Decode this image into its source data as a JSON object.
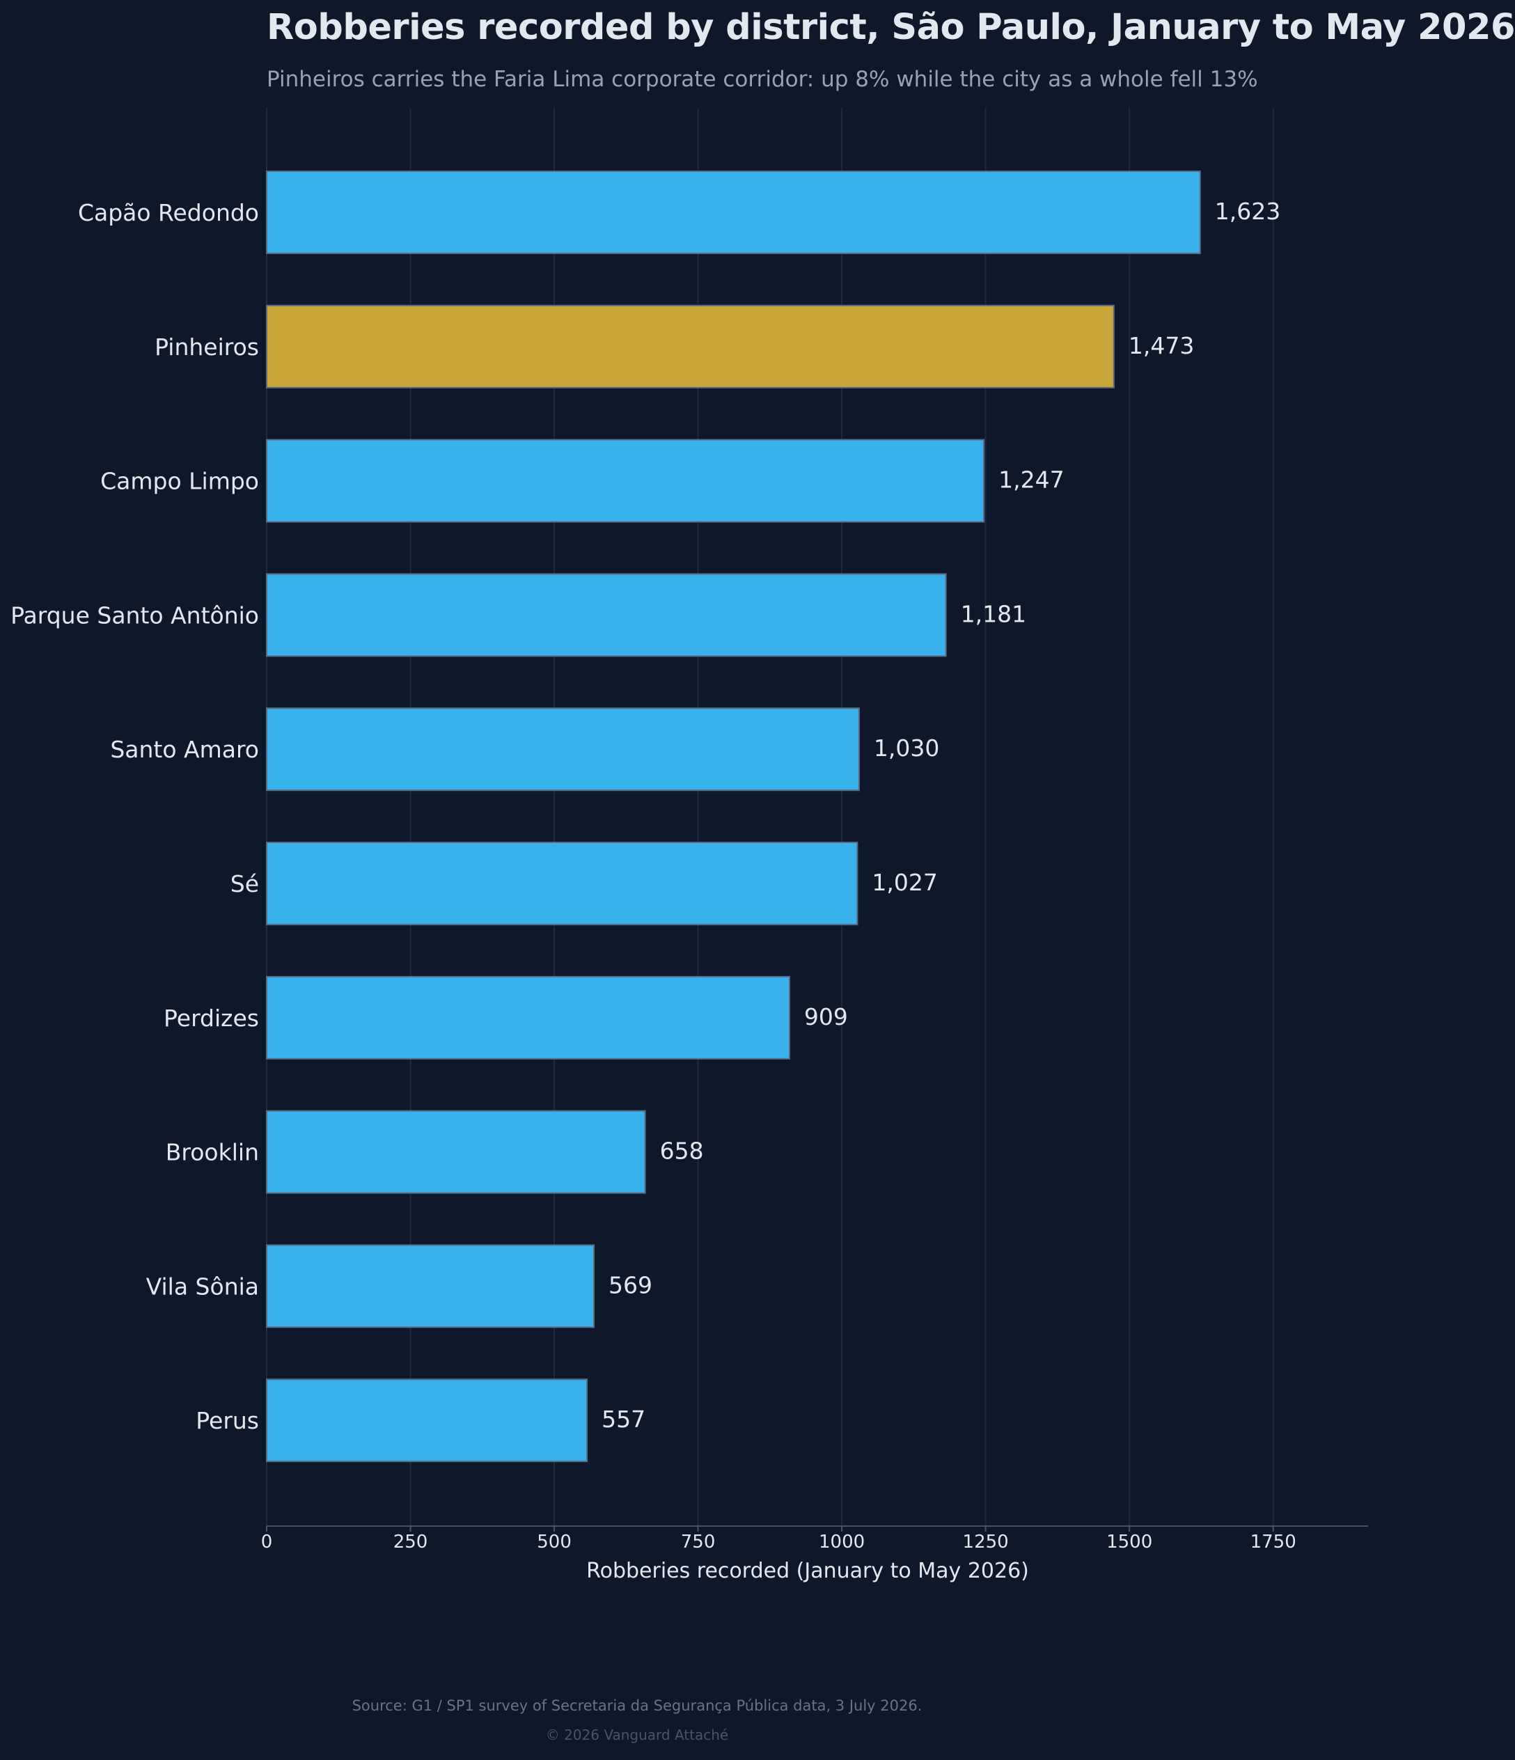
{
  "header": {
    "title": "Robberies recorded by district, São Paulo, January to May 2026",
    "subtitle": "Pinheiros carries the Faria Lima corporate corridor: up 8% while the city as a whole fell 13%"
  },
  "footer": {
    "source": "Source: G1 / SP1 survey of Secretaria da Segurança Pública data, 3 July 2026.",
    "copyright": "© 2026 Vanguard Attaché"
  },
  "colors": {
    "background": "#0f172a",
    "bar": "#38b2ec",
    "highlight_bar": "#c9a63a",
    "highlight_label": "#e8c25a",
    "grid": "#1f2a3d",
    "text": "#e2e8f0"
  },
  "chart_data": {
    "type": "bar",
    "orientation": "horizontal",
    "title": "Robberies recorded by district, São Paulo, January to May 2026",
    "subtitle": "Pinheiros carries the Faria Lima corporate corridor: up 8% while the city as a whole fell 13%",
    "xlabel": "Robberies recorded (January to May 2026)",
    "ylabel": "",
    "categories": [
      "Capão Redondo",
      "Pinheiros",
      "Campo Limpo",
      "Parque Santo Antônio",
      "Santo Amaro",
      "Sé",
      "Perdizes",
      "Brooklin",
      "Vila Sônia",
      "Perus"
    ],
    "values": [
      1623,
      1473,
      1247,
      1181,
      1030,
      1027,
      909,
      658,
      569,
      557
    ],
    "value_labels": [
      "1,623",
      "1,473",
      "1,247",
      "1,181",
      "1,030",
      "1,027",
      "909",
      "658",
      "569",
      "557"
    ],
    "highlight": "Pinheiros",
    "xlim": [
      0,
      1915
    ],
    "xticks": [
      0,
      250,
      500,
      750,
      1000,
      1250,
      1500,
      1750
    ],
    "xtick_labels": [
      "0",
      "250",
      "500",
      "750",
      "1000",
      "1250",
      "1500",
      "1750"
    ],
    "grid": "vertical"
  }
}
